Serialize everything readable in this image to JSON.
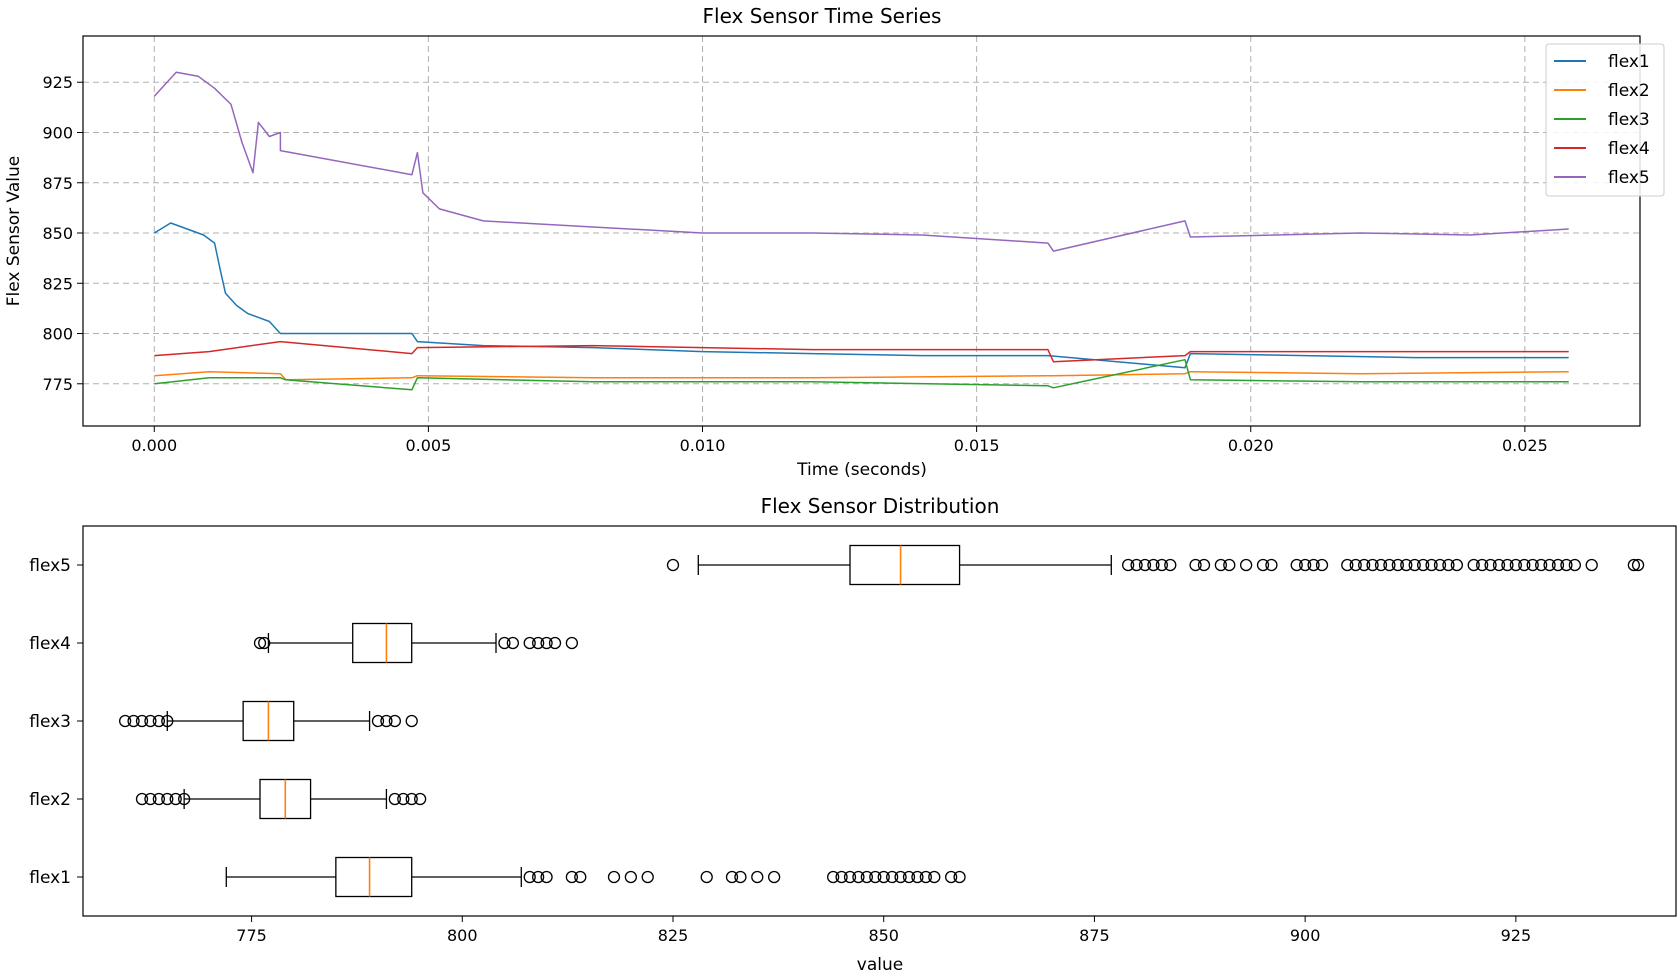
{
  "chart_data": [
    {
      "type": "line",
      "title": "Flex Sensor Time Series",
      "xlabel": "Time (seconds)",
      "ylabel": "Flex Sensor Value",
      "xlim": [
        -0.0013,
        0.0271
      ],
      "ylim": [
        754,
        948
      ],
      "xticks": [
        0.0,
        0.005,
        0.01,
        0.015,
        0.02,
        0.025
      ],
      "xtick_labels": [
        "0.000",
        "0.005",
        "0.010",
        "0.015",
        "0.020",
        "0.025"
      ],
      "yticks": [
        775,
        800,
        825,
        850,
        875,
        900,
        925
      ],
      "ytick_labels": [
        "775",
        "800",
        "825",
        "850",
        "875",
        "900",
        "925"
      ],
      "grid": true,
      "legend_position": "top-right",
      "series": [
        {
          "name": "flex1",
          "color": "#1f77b4",
          "points": [
            [
              0.0,
              850
            ],
            [
              0.0003,
              855
            ],
            [
              0.0006,
              852
            ],
            [
              0.0009,
              849
            ],
            [
              0.0011,
              845
            ],
            [
              0.0012,
              832
            ],
            [
              0.0013,
              820
            ],
            [
              0.0015,
              814
            ],
            [
              0.0017,
              810
            ],
            [
              0.0019,
              808
            ],
            [
              0.0021,
              806
            ],
            [
              0.0023,
              800
            ],
            [
              0.0047,
              800
            ],
            [
              0.0048,
              796
            ],
            [
              0.006,
              794
            ],
            [
              0.008,
              793
            ],
            [
              0.01,
              791
            ],
            [
              0.012,
              790
            ],
            [
              0.014,
              789
            ],
            [
              0.0163,
              789
            ],
            [
              0.0188,
              783
            ],
            [
              0.0189,
              790
            ],
            [
              0.021,
              789
            ],
            [
              0.023,
              788
            ],
            [
              0.0258,
              788
            ]
          ]
        },
        {
          "name": "flex2",
          "color": "#ff7f0e",
          "points": [
            [
              0.0,
              779
            ],
            [
              0.001,
              781
            ],
            [
              0.0023,
              780
            ],
            [
              0.0024,
              777
            ],
            [
              0.0047,
              778
            ],
            [
              0.0048,
              779
            ],
            [
              0.008,
              778
            ],
            [
              0.012,
              778
            ],
            [
              0.0163,
              779
            ],
            [
              0.0164,
              779
            ],
            [
              0.0188,
              780
            ],
            [
              0.0189,
              781
            ],
            [
              0.022,
              780
            ],
            [
              0.0258,
              781
            ]
          ]
        },
        {
          "name": "flex3",
          "color": "#2ca02c",
          "points": [
            [
              0.0,
              775
            ],
            [
              0.001,
              778
            ],
            [
              0.0023,
              778
            ],
            [
              0.0024,
              777
            ],
            [
              0.0047,
              772
            ],
            [
              0.0048,
              778
            ],
            [
              0.008,
              776
            ],
            [
              0.012,
              776
            ],
            [
              0.0163,
              774
            ],
            [
              0.0164,
              773
            ],
            [
              0.0188,
              787
            ],
            [
              0.0189,
              777
            ],
            [
              0.022,
              776
            ],
            [
              0.0258,
              776
            ]
          ]
        },
        {
          "name": "flex4",
          "color": "#d62728",
          "points": [
            [
              0.0,
              789
            ],
            [
              0.001,
              791
            ],
            [
              0.0023,
              796
            ],
            [
              0.0047,
              790
            ],
            [
              0.0048,
              793
            ],
            [
              0.008,
              794
            ],
            [
              0.012,
              792
            ],
            [
              0.0163,
              792
            ],
            [
              0.0164,
              786
            ],
            [
              0.0188,
              789
            ],
            [
              0.0189,
              791
            ],
            [
              0.022,
              791
            ],
            [
              0.0258,
              791
            ]
          ]
        },
        {
          "name": "flex5",
          "color": "#9467bd",
          "points": [
            [
              0.0,
              918
            ],
            [
              0.0004,
              930
            ],
            [
              0.0008,
              928
            ],
            [
              0.0011,
              922
            ],
            [
              0.0014,
              914
            ],
            [
              0.0016,
              895
            ],
            [
              0.0018,
              880
            ],
            [
              0.0019,
              905
            ],
            [
              0.0021,
              898
            ],
            [
              0.0023,
              900
            ],
            [
              0.0023,
              891
            ],
            [
              0.0047,
              879
            ],
            [
              0.0048,
              890
            ],
            [
              0.0049,
              870
            ],
            [
              0.0052,
              862
            ],
            [
              0.006,
              856
            ],
            [
              0.008,
              853
            ],
            [
              0.01,
              850
            ],
            [
              0.012,
              850
            ],
            [
              0.014,
              849
            ],
            [
              0.0163,
              845
            ],
            [
              0.0164,
              841
            ],
            [
              0.0188,
              856
            ],
            [
              0.0189,
              848
            ],
            [
              0.022,
              850
            ],
            [
              0.024,
              849
            ],
            [
              0.0258,
              852
            ]
          ]
        }
      ]
    },
    {
      "type": "boxplot",
      "title": "Flex Sensor Distribution",
      "xlabel": "value",
      "ylabel": "",
      "xlim": [
        755,
        944
      ],
      "xticks": [
        775,
        800,
        825,
        850,
        875,
        900,
        925
      ],
      "xtick_labels": [
        "775",
        "800",
        "825",
        "850",
        "875",
        "900",
        "925"
      ],
      "categories": [
        "flex1",
        "flex2",
        "flex3",
        "flex4",
        "flex5"
      ],
      "box_color": "#000000",
      "median_color": "#ff7f0e",
      "boxes": [
        {
          "name": "flex1",
          "whisker_low": 772,
          "q1": 785,
          "median": 789,
          "q3": 794,
          "whisker_high": 807,
          "outliers": [
            808,
            809,
            810,
            813,
            814,
            818,
            820,
            822,
            829,
            832,
            833,
            835,
            837,
            844,
            845,
            846,
            847,
            848,
            849,
            850,
            851,
            852,
            853,
            854,
            855,
            856,
            858,
            859
          ]
        },
        {
          "name": "flex2",
          "whisker_low": 767,
          "q1": 776,
          "median": 779,
          "q3": 782,
          "whisker_high": 791,
          "outliers": [
            762,
            763,
            764,
            765,
            766,
            767,
            792,
            793,
            794,
            795
          ]
        },
        {
          "name": "flex3",
          "whisker_low": 765,
          "q1": 774,
          "median": 777,
          "q3": 780,
          "whisker_high": 789,
          "outliers": [
            760,
            761,
            762,
            763,
            764,
            765,
            790,
            791,
            792,
            794
          ]
        },
        {
          "name": "flex4",
          "whisker_low": 777,
          "q1": 787,
          "median": 791,
          "q3": 794,
          "whisker_high": 804,
          "outliers": [
            776,
            776.5,
            805,
            806,
            808,
            809,
            810,
            811,
            813
          ]
        },
        {
          "name": "flex5",
          "whisker_low": 828,
          "q1": 846,
          "median": 852,
          "q3": 859,
          "whisker_high": 877,
          "outliers": [
            825,
            879,
            880,
            881,
            882,
            883,
            884,
            887,
            888,
            890,
            891,
            893,
            895,
            896,
            899,
            900,
            901,
            902,
            905,
            906,
            907,
            908,
            909,
            910,
            911,
            912,
            913,
            914,
            915,
            916,
            917,
            918,
            920,
            921,
            922,
            923,
            924,
            925,
            926,
            927,
            928,
            929,
            930,
            931,
            932,
            934,
            939,
            939.5
          ]
        }
      ]
    }
  ]
}
